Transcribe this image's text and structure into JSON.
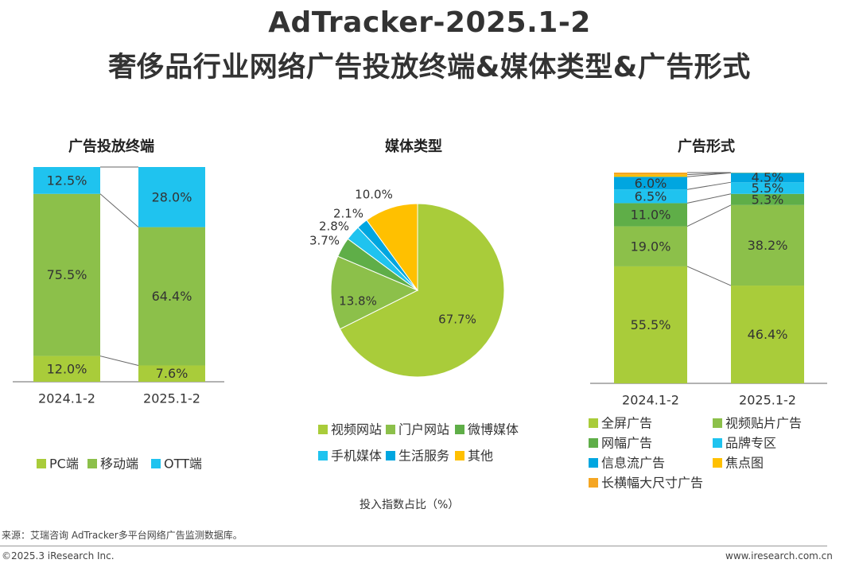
{
  "header": {
    "title_line1": "AdTracker-2025.1-2",
    "title_line2": "奢侈品行业网络广告投放终端&媒体类型&广告形式"
  },
  "chart_data": [
    {
      "type": "bar",
      "subtype": "stacked-100",
      "title": "广告投放终端",
      "categories": [
        "2024.1-2",
        "2025.1-2"
      ],
      "series": [
        {
          "name": "PC端",
          "values": [
            12.0,
            7.6
          ],
          "color": "#a9cc3a"
        },
        {
          "name": "移动端",
          "values": [
            75.5,
            64.4
          ],
          "color": "#8cc04a"
        },
        {
          "name": "OTT端",
          "values": [
            12.5,
            28.0
          ],
          "color": "#1fc3ef"
        }
      ],
      "unit": "%"
    },
    {
      "type": "pie",
      "title": "媒体类型",
      "slices": [
        {
          "name": "视频网站",
          "value": 67.7,
          "color": "#a9cc3a"
        },
        {
          "name": "门户网站",
          "value": 13.8,
          "color": "#8cc04a"
        },
        {
          "name": "微博媒体",
          "value": 3.7,
          "color": "#5fae48"
        },
        {
          "name": "手机媒体",
          "value": 2.8,
          "color": "#1fc3ef"
        },
        {
          "name": "生活服务",
          "value": 2.1,
          "color": "#00a6e0"
        },
        {
          "name": "其他",
          "value": 10.0,
          "color": "#ffc000"
        }
      ],
      "unit": "%"
    },
    {
      "type": "bar",
      "subtype": "stacked-100",
      "title": "广告形式",
      "categories": [
        "2024.1-2",
        "2025.1-2"
      ],
      "series": [
        {
          "name": "全屏广告",
          "values": [
            55.5,
            46.4
          ],
          "color": "#a9cc3a"
        },
        {
          "name": "视频贴片广告",
          "values": [
            19.0,
            38.2
          ],
          "color": "#8cc04a"
        },
        {
          "name": "网幅广告",
          "values": [
            11.0,
            5.3
          ],
          "color": "#5fae48"
        },
        {
          "name": "品牌专区",
          "values": [
            6.5,
            5.5
          ],
          "color": "#1fc3ef"
        },
        {
          "name": "信息流广告",
          "values": [
            6.0,
            4.5
          ],
          "color": "#00a6e0"
        },
        {
          "name": "焦点图",
          "values": [
            1.0,
            0.1
          ],
          "color": "#ffc000"
        },
        {
          "name": "长横幅大尺寸广告",
          "values": [
            1.0,
            0.0
          ],
          "color": "#f5a623"
        }
      ],
      "value_labels": [
        [
          "55.5%",
          "19.0%",
          "11.0%",
          "6.5%",
          "6.0%",
          "",
          ""
        ],
        [
          "46.4%",
          "38.2%",
          "5.3%",
          "5.5%",
          "4.5%",
          "",
          ""
        ]
      ],
      "unit": "%"
    }
  ],
  "x_axis_note": "投入指数占比（%）",
  "footer": {
    "source": "来源：艾瑞咨询 AdTracker多平台网络广告监测数据库。",
    "copyright": "©2025.3 iResearch Inc.",
    "url": "www.iresearch.com.cn"
  }
}
